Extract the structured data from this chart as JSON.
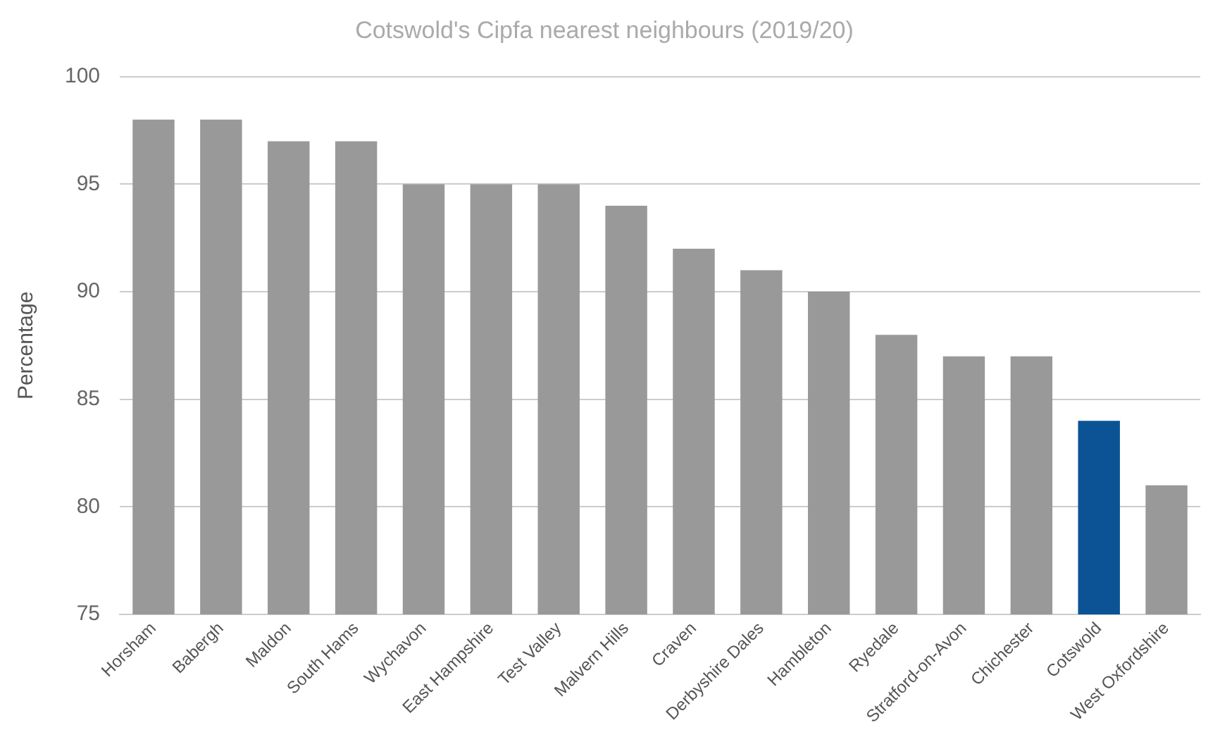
{
  "chart_data": {
    "type": "bar",
    "title": "Cotswold's Cipfa nearest neighbours (2019/20)",
    "ylabel": "Percentage",
    "categories": [
      "Horsham",
      "Babergh",
      "Maldon",
      "South Hams",
      "Wychavon",
      "East Hampshire",
      "Test Valley",
      "Malvern Hills",
      "Craven",
      "Derbyshire Dales",
      "Hambleton",
      "Ryedale",
      "Stratford-on-Avon",
      "Chichester",
      "Cotswold",
      "West Oxfordshire"
    ],
    "values": [
      98,
      98,
      97,
      97,
      95,
      95,
      95,
      94,
      92,
      91,
      90,
      88,
      87,
      87,
      84,
      81
    ],
    "colors": [
      "#999999",
      "#999999",
      "#999999",
      "#999999",
      "#999999",
      "#999999",
      "#999999",
      "#999999",
      "#999999",
      "#999999",
      "#999999",
      "#999999",
      "#999999",
      "#999999",
      "#0b5394",
      "#999999"
    ],
    "ylim": [
      75,
      100
    ],
    "yticks": [
      75,
      80,
      85,
      90,
      95,
      100
    ],
    "grid": "y",
    "legend": false
  }
}
